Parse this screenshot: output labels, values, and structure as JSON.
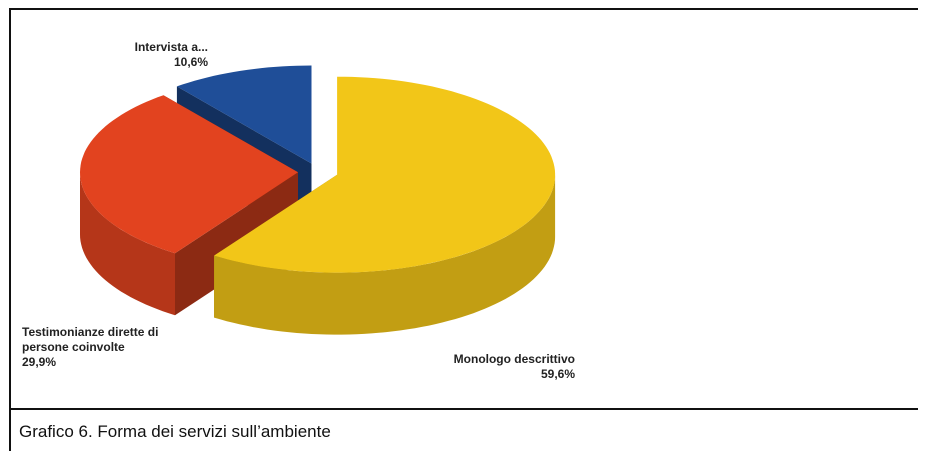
{
  "chart_data": {
    "type": "pie",
    "categories": [
      "Monologo descrittivo",
      "Testimonianze dirette di persone coinvolte",
      "Intervista a..."
    ],
    "values": [
      59.6,
      29.9,
      10.6
    ],
    "value_labels": [
      "59,6%",
      "29,9%",
      "10,6%"
    ],
    "colors": [
      "#f2c618",
      "#e2431f",
      "#1f4e98"
    ],
    "caption": "Grafico 6. Forma dei servizi sull’ambiente"
  }
}
